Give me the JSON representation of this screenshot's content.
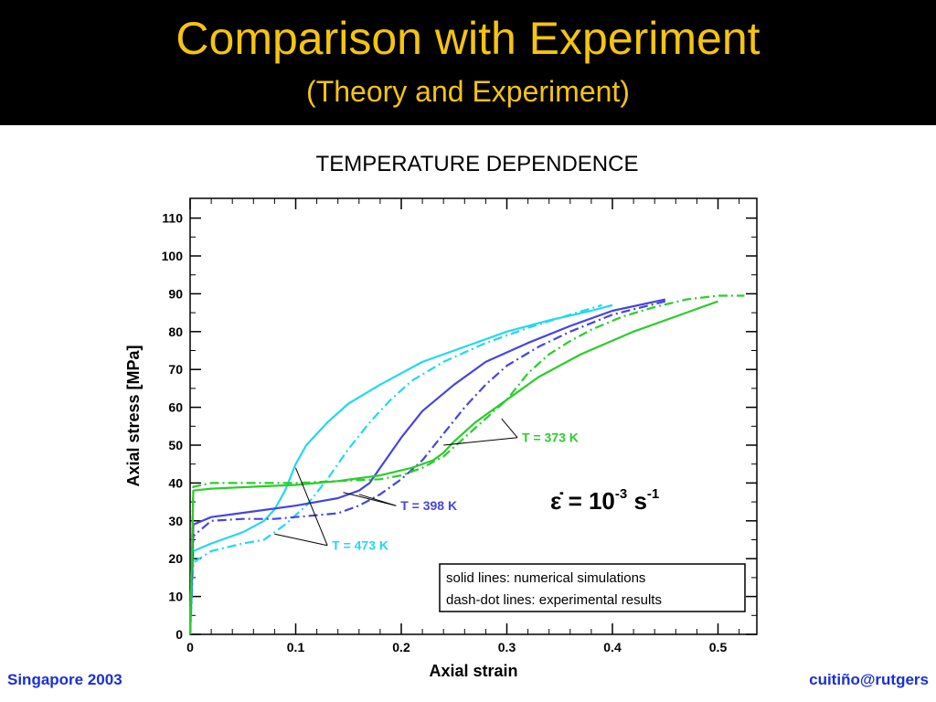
{
  "slide": {
    "title": "Comparison with Experiment",
    "subtitle": "(Theory and Experiment)",
    "footer_left": "Singapore 2003",
    "footer_right": "cuitiño@rutgers"
  },
  "colors": {
    "header_bg": "#000000",
    "title": "#f5c40f",
    "footer": "#1a2fd6",
    "T473": "#22d8f0",
    "T398": "#4646dc",
    "T373": "#2ccc2c"
  },
  "chart_data": {
    "type": "line",
    "title": "TEMPERATURE DEPENDENCE",
    "xlabel": "Axial strain",
    "ylabel": "Axial stress [MPa]",
    "xlim": [
      0,
      0.54
    ],
    "ylim": [
      0,
      115
    ],
    "xticks": [
      0,
      0.1,
      0.2,
      0.3,
      0.4,
      0.5
    ],
    "xtick_labels": [
      "0",
      "0.1",
      "0.2",
      "0.3",
      "0.4",
      "0.5"
    ],
    "yticks": [
      0,
      10,
      20,
      30,
      40,
      50,
      60,
      70,
      80,
      90,
      100,
      110
    ],
    "ytick_labels": [
      "0",
      "10",
      "20",
      "30",
      "40",
      "50",
      "60",
      "70",
      "80",
      "90",
      "100",
      "110"
    ],
    "grid": false,
    "series": [
      {
        "name": "T = 473 K",
        "color": "#22d8f0",
        "style": "solid",
        "x": [
          0,
          0.003,
          0.02,
          0.05,
          0.07,
          0.08,
          0.09,
          0.1,
          0.11,
          0.13,
          0.15,
          0.18,
          0.22,
          0.26,
          0.3,
          0.34,
          0.38,
          0.4
        ],
        "y": [
          0,
          22,
          24,
          27,
          30,
          33,
          38,
          45,
          50,
          56,
          61,
          66,
          72,
          76,
          80,
          83,
          85.5,
          87
        ]
      },
      {
        "name": "T = 473 K",
        "color": "#22d8f0",
        "style": "dashdot",
        "x": [
          0,
          0.003,
          0.02,
          0.05,
          0.07,
          0.09,
          0.11,
          0.13,
          0.15,
          0.17,
          0.19,
          0.21,
          0.24,
          0.28,
          0.32,
          0.36,
          0.39
        ],
        "y": [
          0,
          19,
          22,
          24,
          25,
          29,
          34,
          41,
          49,
          56,
          62,
          67,
          72,
          77,
          81,
          84.5,
          87
        ]
      },
      {
        "name": "T = 398 K",
        "color": "#4646dc",
        "style": "solid",
        "x": [
          0,
          0.003,
          0.02,
          0.06,
          0.1,
          0.14,
          0.16,
          0.17,
          0.18,
          0.2,
          0.22,
          0.25,
          0.28,
          0.32,
          0.36,
          0.4,
          0.45
        ],
        "y": [
          0,
          29,
          31,
          32.5,
          34,
          36,
          38,
          40,
          44,
          52,
          59,
          66,
          72,
          77,
          81.5,
          85.5,
          88.5
        ]
      },
      {
        "name": "T = 398 K",
        "color": "#4646dc",
        "style": "dashdot",
        "x": [
          0,
          0.003,
          0.02,
          0.05,
          0.08,
          0.1,
          0.12,
          0.14,
          0.16,
          0.18,
          0.2,
          0.22,
          0.24,
          0.26,
          0.28,
          0.3,
          0.33,
          0.36,
          0.4,
          0.45
        ],
        "y": [
          0,
          26,
          30,
          30.5,
          30.5,
          31,
          31.5,
          32,
          34,
          37,
          41,
          46,
          53,
          60,
          66,
          71,
          76,
          80,
          84.5,
          88
        ]
      },
      {
        "name": "T = 373 K",
        "color": "#2ccc2c",
        "style": "solid",
        "x": [
          0,
          0.003,
          0.02,
          0.06,
          0.1,
          0.14,
          0.18,
          0.21,
          0.23,
          0.24,
          0.25,
          0.27,
          0.3,
          0.33,
          0.37,
          0.42,
          0.47,
          0.5
        ],
        "y": [
          0,
          38,
          38.5,
          39,
          39.5,
          40.5,
          42,
          44,
          46,
          48,
          51,
          56,
          62,
          68,
          74,
          80,
          85,
          88
        ]
      },
      {
        "name": "T = 373 K",
        "color": "#2ccc2c",
        "style": "dashdot",
        "x": [
          0,
          0.003,
          0.02,
          0.06,
          0.1,
          0.14,
          0.18,
          0.2,
          0.22,
          0.24,
          0.26,
          0.28,
          0.3,
          0.32,
          0.34,
          0.36,
          0.38,
          0.41,
          0.44,
          0.47,
          0.5,
          0.525
        ],
        "y": [
          0,
          39,
          40,
          40,
          40,
          40.5,
          41,
          42,
          44,
          47,
          52,
          57,
          62,
          69,
          74,
          77.5,
          80.5,
          84,
          86.5,
          88.5,
          89.5,
          89.5
        ]
      }
    ],
    "annotations": [
      {
        "text": "T = 473 K",
        "color": "#22d8f0",
        "at": [
          0.13,
          23.5
        ],
        "pointers": [
          [
            0.1,
            44
          ],
          [
            0.08,
            26.5
          ]
        ]
      },
      {
        "text": "T = 398 K",
        "color": "#4646dc",
        "at": [
          0.195,
          34
        ],
        "pointers": [
          [
            0.16,
            37
          ],
          [
            0.145,
            37.5
          ]
        ]
      },
      {
        "text": "T = 373 K",
        "color": "#2ccc2c",
        "at": [
          0.31,
          52
        ],
        "pointers": [
          [
            0.24,
            50
          ],
          [
            0.295,
            57
          ]
        ]
      }
    ],
    "rate_label": {
      "epsilon": "ε̇ = 10",
      "exp1": "-3",
      "unit": " s",
      "exp2": "-1"
    },
    "legend_box": {
      "line1": "solid lines: numerical simulations",
      "line2": "dash-dot lines: experimental results"
    }
  }
}
